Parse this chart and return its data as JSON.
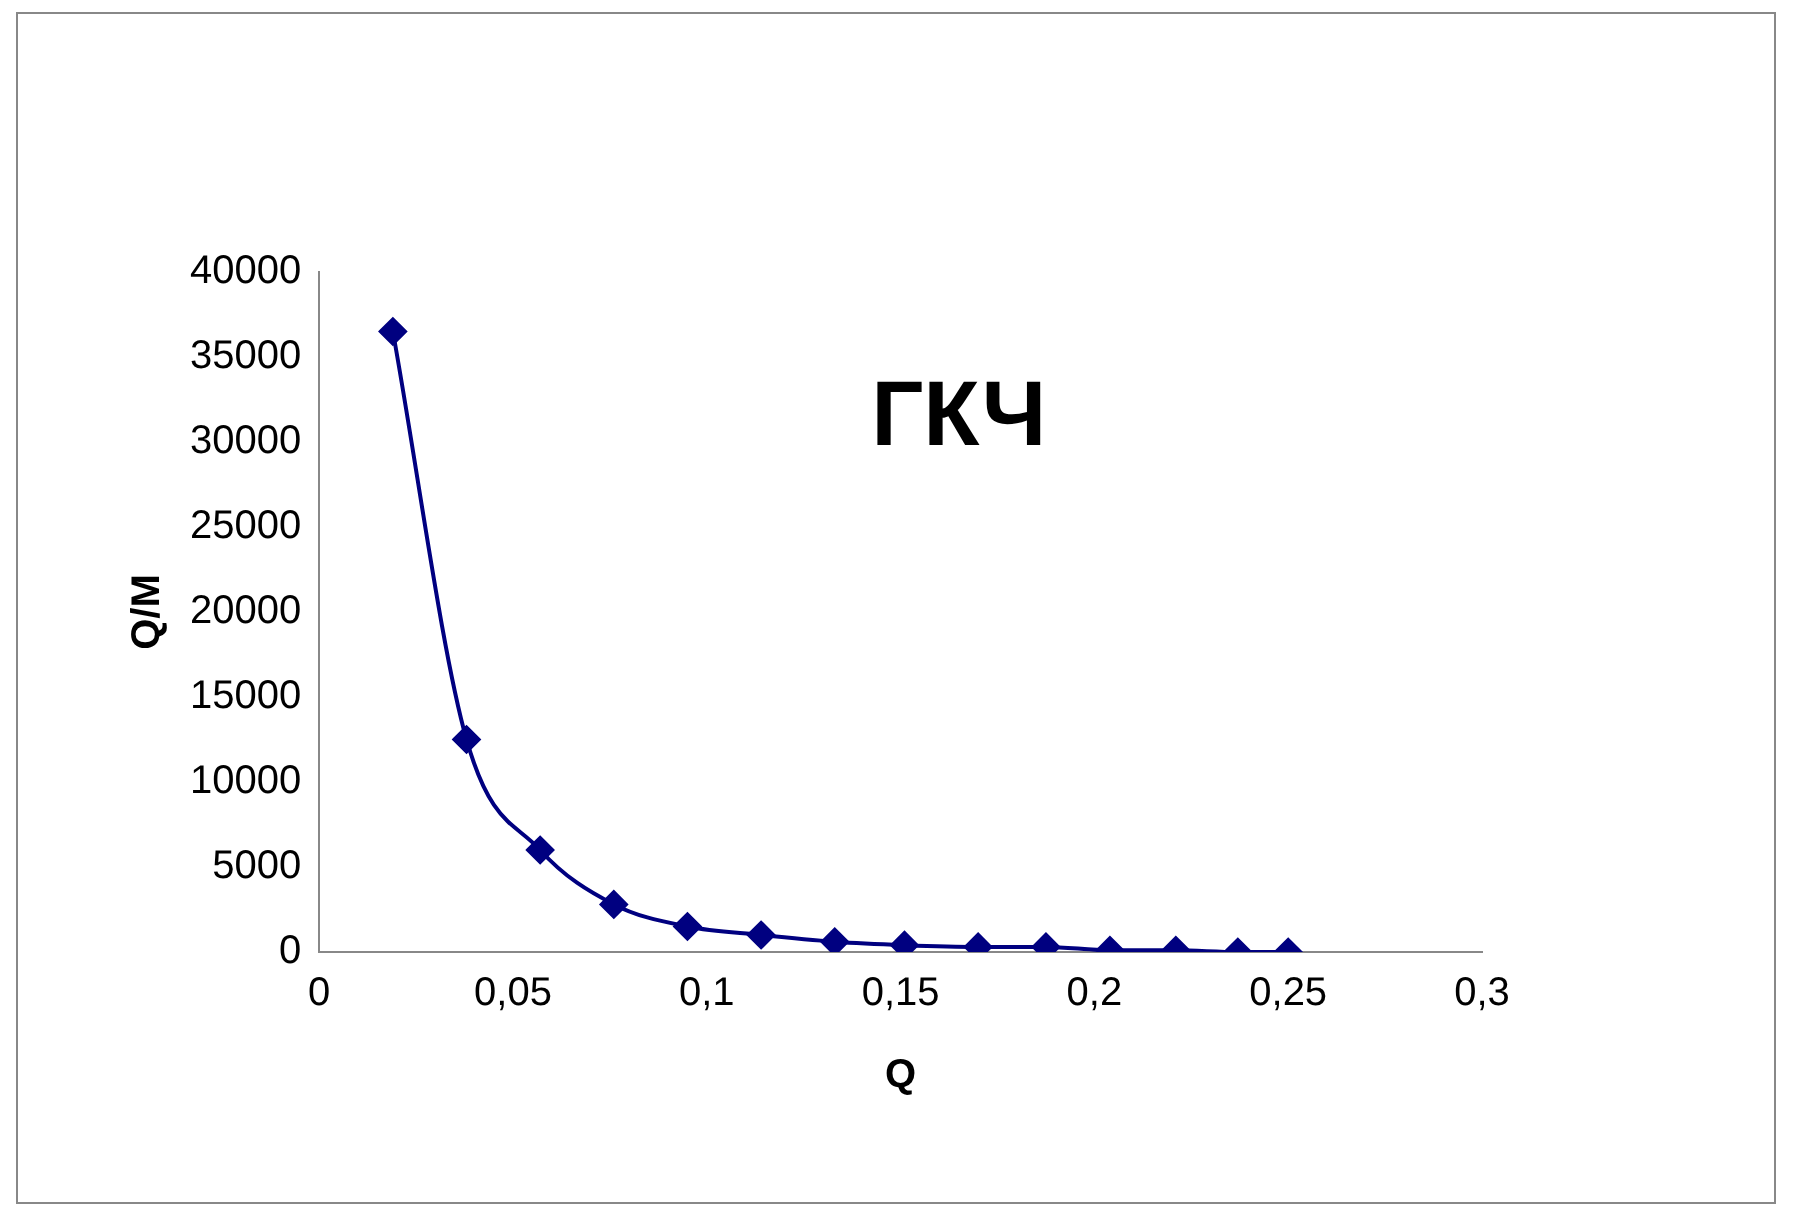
{
  "chart_data": {
    "type": "line",
    "title": "ГКЧ",
    "xlabel": "Q",
    "ylabel": "Q/M",
    "x": [
      0.019,
      0.038,
      0.057,
      0.076,
      0.095,
      0.114,
      0.133,
      0.151,
      0.17,
      0.1875,
      0.204,
      0.221,
      0.237,
      0.25
    ],
    "series": [
      {
        "color": "#000080",
        "values": [
          36500,
          12500,
          6000,
          2800,
          1500,
          1000,
          600,
          400,
          300,
          300,
          100,
          100,
          0,
          0
        ]
      }
    ],
    "xlim": [
      0,
      0.3
    ],
    "xticks": [
      0,
      {
        "value": 0.05,
        "label": "0,05"
      },
      {
        "value": 0.1,
        "label": "0,1"
      },
      {
        "value": 0.15,
        "label": "0,15"
      },
      {
        "value": 0.2,
        "label": "0,2"
      },
      {
        "value": 0.25,
        "label": "0,25"
      },
      {
        "value": 0.3,
        "label": "0,3"
      }
    ],
    "ylim": [
      0,
      40000
    ],
    "yticks": [
      0,
      5000,
      10000,
      15000,
      20000,
      25000,
      30000,
      35000,
      40000
    ],
    "grid": false,
    "legend": false,
    "marker": "diamond",
    "line_style": "solid"
  }
}
